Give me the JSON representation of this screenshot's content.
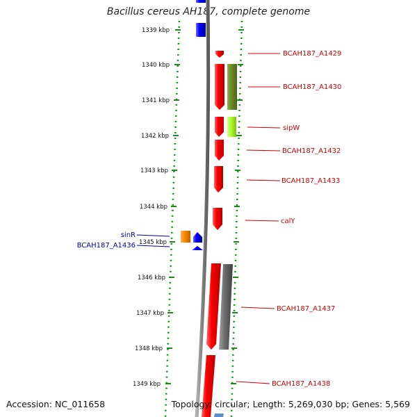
{
  "title": "Bacillus cereus AH187, complete genome",
  "accession": "Accession: NC_011658",
  "summary": "Topology: circular; Length: 5,269,030 bp; Genes: 5,569",
  "ticks": [
    "1339 kbp",
    "1340 kbp",
    "1341 kbp",
    "1342 kbp",
    "1343 kbp",
    "1344 kbp",
    "1345 kbp",
    "1346 kbp",
    "1347 kbp",
    "1348 kbp",
    "1349 kbp"
  ],
  "genes_right": [
    "BCAH187_A1429",
    "BCAH187_A1430",
    "sipW",
    "BCAH187_A1432",
    "BCAH187_A1433",
    "calY",
    "BCAH187_A1437",
    "BCAH187_A1438"
  ],
  "genes_left": [
    "sinR",
    "BCAH187_A1436"
  ],
  "colors": {
    "axis": "#808080",
    "dots": "#1a8a1a",
    "red_label": "#cc0000",
    "blue_label": "#0000aa",
    "red": "#ff0000",
    "blue": "#0000ff",
    "orange": "#ff8800",
    "olive": "#6b8e23",
    "lime": "#adff2f",
    "gray": "#6e6e6e"
  }
}
